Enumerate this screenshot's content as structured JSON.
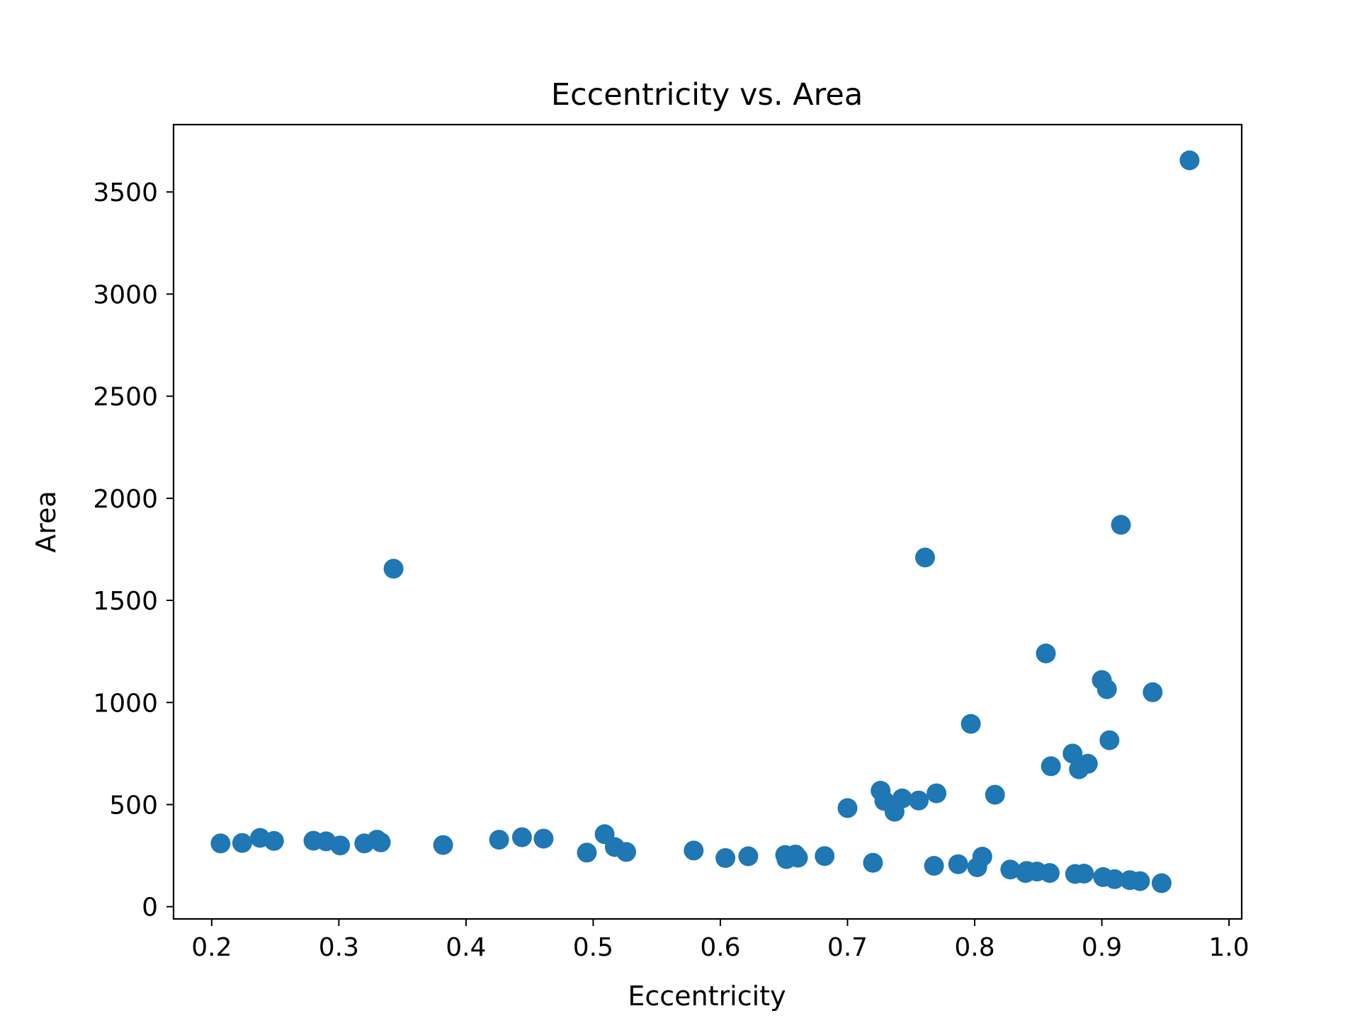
{
  "chart_data": {
    "type": "scatter",
    "title": "Eccentricity vs. Area",
    "xlabel": "Eccentricity",
    "ylabel": "Area",
    "xlim": [
      0.17,
      1.01
    ],
    "ylim": [
      -60,
      3830
    ],
    "xticks": [
      "0.2",
      "0.3",
      "0.4",
      "0.5",
      "0.6",
      "0.7",
      "0.8",
      "0.9",
      "1.0"
    ],
    "yticks": [
      "0",
      "500",
      "1000",
      "1500",
      "2000",
      "2500",
      "3000",
      "3500"
    ],
    "grid": false,
    "legend": "none",
    "marker_color": "#1f77b4",
    "series": [
      {
        "points": [
          [
            0.207,
            310
          ],
          [
            0.224,
            312
          ],
          [
            0.238,
            337
          ],
          [
            0.249,
            322
          ],
          [
            0.28,
            323
          ],
          [
            0.29,
            320
          ],
          [
            0.301,
            300
          ],
          [
            0.32,
            310
          ],
          [
            0.33,
            328
          ],
          [
            0.333,
            315
          ],
          [
            0.343,
            1655
          ],
          [
            0.382,
            302
          ],
          [
            0.426,
            328
          ],
          [
            0.444,
            340
          ],
          [
            0.461,
            333
          ],
          [
            0.495,
            265
          ],
          [
            0.509,
            355
          ],
          [
            0.517,
            292
          ],
          [
            0.526,
            268
          ],
          [
            0.579,
            275
          ],
          [
            0.604,
            238
          ],
          [
            0.622,
            247
          ],
          [
            0.651,
            253
          ],
          [
            0.652,
            233
          ],
          [
            0.659,
            255
          ],
          [
            0.661,
            240
          ],
          [
            0.682,
            248
          ],
          [
            0.7,
            483
          ],
          [
            0.72,
            215
          ],
          [
            0.726,
            568
          ],
          [
            0.729,
            518
          ],
          [
            0.737,
            465
          ],
          [
            0.743,
            530
          ],
          [
            0.756,
            520
          ],
          [
            0.761,
            1710
          ],
          [
            0.768,
            200
          ],
          [
            0.77,
            555
          ],
          [
            0.787,
            208
          ],
          [
            0.797,
            895
          ],
          [
            0.802,
            193
          ],
          [
            0.806,
            245
          ],
          [
            0.816,
            548
          ],
          [
            0.828,
            182
          ],
          [
            0.84,
            165
          ],
          [
            0.841,
            175
          ],
          [
            0.849,
            172
          ],
          [
            0.856,
            1240
          ],
          [
            0.859,
            165
          ],
          [
            0.86,
            688
          ],
          [
            0.877,
            750
          ],
          [
            0.879,
            160
          ],
          [
            0.882,
            673
          ],
          [
            0.886,
            162
          ],
          [
            0.889,
            700
          ],
          [
            0.9,
            1110
          ],
          [
            0.901,
            145
          ],
          [
            0.904,
            1065
          ],
          [
            0.906,
            815
          ],
          [
            0.91,
            135
          ],
          [
            0.915,
            1870
          ],
          [
            0.922,
            130
          ],
          [
            0.93,
            125
          ],
          [
            0.94,
            1050
          ],
          [
            0.947,
            115
          ],
          [
            0.969,
            3655
          ]
        ]
      }
    ]
  }
}
